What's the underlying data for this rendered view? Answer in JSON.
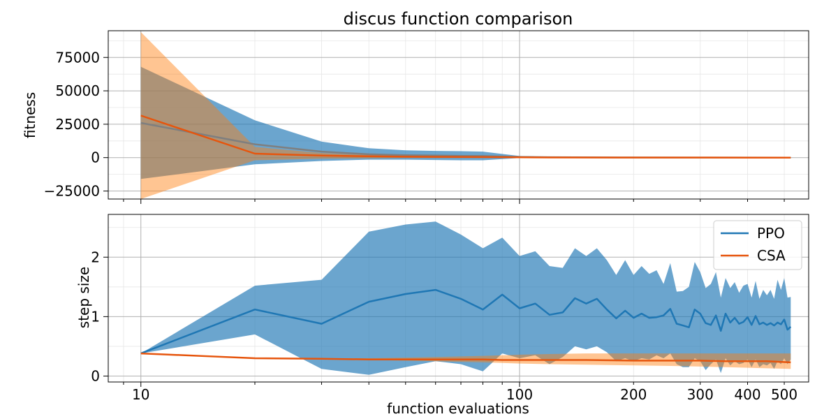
{
  "chart_data": [
    {
      "type": "line",
      "title": "discus function comparison",
      "xlabel": "",
      "ylabel": "fitness",
      "xscale": "log",
      "xlim": [
        8.2,
        580
      ],
      "ylim": [
        -31000,
        95000
      ],
      "yticks": [
        -25000,
        0,
        25000,
        50000,
        75000
      ],
      "ytick_labels": [
        "−25000",
        "0",
        "25000",
        "50000",
        "75000"
      ],
      "grid": true,
      "legend": false,
      "series": [
        {
          "name": "PPO",
          "color": "#1f77b4",
          "x": [
            10,
            20,
            30,
            40,
            50,
            60,
            70,
            80,
            100,
            120,
            200,
            300,
            400,
            520
          ],
          "mean": [
            26000,
            10000,
            4500,
            2500,
            1800,
            1500,
            1300,
            1200,
            500,
            300,
            100,
            50,
            30,
            20
          ],
          "upper": [
            68000,
            28000,
            12000,
            7000,
            5500,
            5000,
            4800,
            4500,
            1200,
            600,
            200,
            100,
            60,
            40
          ],
          "lower": [
            -16000,
            -5000,
            -2500,
            -1500,
            -1500,
            -1800,
            -2000,
            -2000,
            -300,
            -100,
            -20,
            0,
            0,
            0
          ]
        },
        {
          "name": "CSA",
          "color": "#e6550d",
          "x": [
            10,
            20,
            30,
            40,
            50,
            60,
            70,
            80,
            100,
            120,
            200,
            300,
            400,
            520
          ],
          "mean": [
            31500,
            3000,
            1500,
            1000,
            700,
            600,
            500,
            400,
            200,
            100,
            50,
            30,
            20,
            10
          ],
          "upper": [
            94000,
            8000,
            3500,
            2000,
            1500,
            1200,
            1000,
            800,
            400,
            200,
            100,
            60,
            40,
            20
          ],
          "lower": [
            -31000,
            -2000,
            -800,
            -500,
            -300,
            -300,
            -300,
            -300,
            -100,
            -50,
            0,
            0,
            0,
            0
          ]
        }
      ]
    },
    {
      "type": "line",
      "title": "",
      "xlabel": "function evaluations",
      "ylabel": "step size",
      "xscale": "log",
      "xlim": [
        8.2,
        580
      ],
      "ylim": [
        -0.1,
        2.72
      ],
      "yticks": [
        0,
        1,
        2
      ],
      "ytick_labels": [
        "0",
        "1",
        "2"
      ],
      "xticks": [
        10,
        100,
        200,
        300,
        400,
        500
      ],
      "xtick_labels": [
        "10",
        "100",
        "200",
        "300",
        "400",
        "500"
      ],
      "grid": true,
      "legend": {
        "placement": "top-right",
        "entries": [
          "PPO",
          "CSA"
        ]
      },
      "series": [
        {
          "name": "PPO",
          "color": "#1f77b4",
          "x": [
            10,
            20,
            30,
            40,
            50,
            60,
            70,
            80,
            90,
            100,
            110,
            120,
            130,
            140,
            150,
            160,
            170,
            180,
            190,
            200,
            210,
            220,
            230,
            240,
            250,
            260,
            270,
            280,
            290,
            300,
            310,
            320,
            330,
            340,
            350,
            360,
            370,
            380,
            390,
            400,
            410,
            420,
            430,
            440,
            450,
            460,
            470,
            480,
            490,
            500,
            510,
            520
          ],
          "mean": [
            0.38,
            1.12,
            0.88,
            1.25,
            1.38,
            1.45,
            1.3,
            1.12,
            1.37,
            1.14,
            1.22,
            1.03,
            1.07,
            1.31,
            1.22,
            1.3,
            1.12,
            0.97,
            1.1,
            0.98,
            1.05,
            0.98,
            0.99,
            1.02,
            1.13,
            0.88,
            0.85,
            0.82,
            1.12,
            1.05,
            0.89,
            0.86,
            1.02,
            0.76,
            1.05,
            0.9,
            0.98,
            0.88,
            0.91,
            0.99,
            0.86,
            1.01,
            0.87,
            0.9,
            0.86,
            0.89,
            0.85,
            0.9,
            0.87,
            0.95,
            0.78,
            0.83
          ],
          "upper": [
            0.38,
            1.52,
            1.62,
            2.43,
            2.55,
            2.6,
            2.38,
            2.15,
            2.33,
            2.02,
            2.1,
            1.85,
            1.82,
            2.15,
            2.02,
            2.15,
            1.95,
            1.7,
            1.95,
            1.7,
            1.85,
            1.72,
            1.78,
            1.55,
            1.9,
            1.42,
            1.43,
            1.5,
            1.92,
            1.75,
            1.48,
            1.55,
            1.75,
            1.32,
            1.65,
            1.48,
            1.58,
            1.4,
            1.52,
            1.55,
            1.32,
            1.6,
            1.3,
            1.45,
            1.36,
            1.45,
            1.3,
            1.62,
            1.45,
            1.65,
            1.32,
            1.33
          ],
          "lower": [
            0.38,
            0.7,
            0.12,
            0.02,
            0.15,
            0.25,
            0.2,
            0.08,
            0.38,
            0.3,
            0.35,
            0.2,
            0.32,
            0.5,
            0.45,
            0.5,
            0.4,
            0.25,
            0.3,
            0.25,
            0.3,
            0.28,
            0.35,
            0.3,
            0.38,
            0.2,
            0.15,
            0.15,
            0.3,
            0.25,
            0.1,
            0.2,
            0.28,
            0.05,
            0.3,
            0.18,
            0.25,
            0.2,
            0.22,
            0.28,
            0.15,
            0.28,
            0.15,
            0.2,
            0.18,
            0.22,
            0.12,
            0.25,
            0.2,
            0.3,
            0.2,
            0.28
          ]
        },
        {
          "name": "CSA",
          "color": "#e6550d",
          "x": [
            10,
            20,
            30,
            40,
            50,
            60,
            70,
            80,
            90,
            100,
            120,
            150,
            200,
            250,
            300,
            350,
            400,
            450,
            520
          ],
          "mean": [
            0.38,
            0.3,
            0.29,
            0.28,
            0.28,
            0.28,
            0.28,
            0.28,
            0.27,
            0.27,
            0.27,
            0.27,
            0.26,
            0.26,
            0.26,
            0.25,
            0.25,
            0.25,
            0.23
          ],
          "upper": [
            0.38,
            0.3,
            0.3,
            0.3,
            0.31,
            0.32,
            0.33,
            0.34,
            0.35,
            0.36,
            0.37,
            0.38,
            0.38,
            0.38,
            0.38,
            0.38,
            0.38,
            0.38,
            0.38
          ],
          "lower": [
            0.38,
            0.3,
            0.28,
            0.27,
            0.26,
            0.25,
            0.24,
            0.23,
            0.22,
            0.21,
            0.2,
            0.19,
            0.18,
            0.17,
            0.16,
            0.15,
            0.14,
            0.13,
            0.12
          ]
        }
      ]
    }
  ]
}
